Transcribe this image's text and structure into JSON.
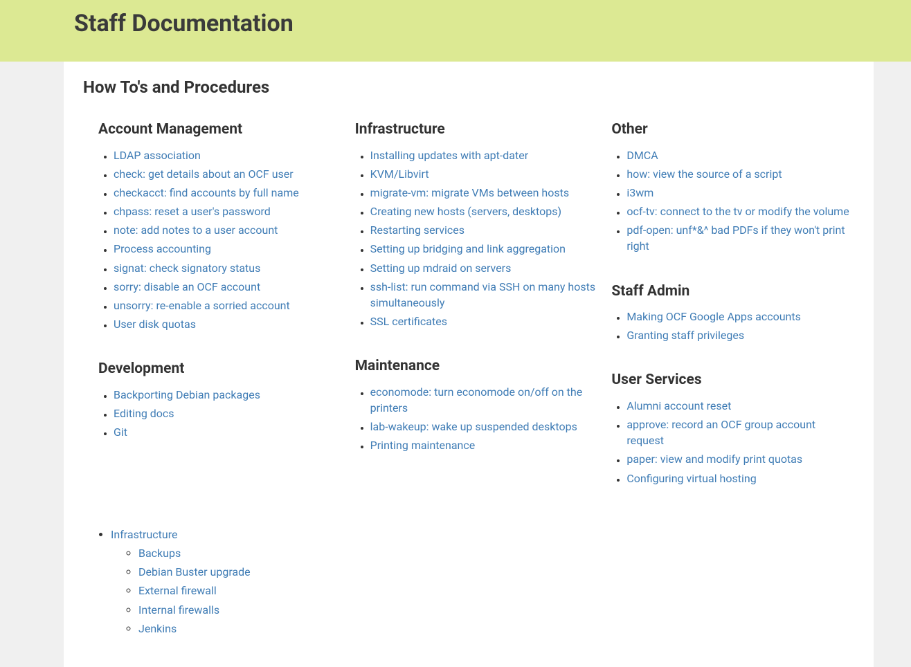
{
  "page_title": "Staff Documentation",
  "section_title": "How To's and Procedures",
  "colors": {
    "header_bg": "#dce993",
    "page_bg": "#f0f0f0",
    "content_bg": "#ffffff",
    "link": "#3f7cb5",
    "text": "#333333"
  },
  "columns": [
    [
      {
        "title": "Account Management",
        "items": [
          "LDAP association",
          "check: get details about an OCF user",
          "checkacct: find accounts by full name",
          "chpass: reset a user's password",
          "note: add notes to a user account",
          "Process accounting",
          "signat: check signatory status",
          "sorry: disable an OCF account",
          "unsorry: re-enable a sorried account",
          "User disk quotas"
        ]
      },
      {
        "title": "Development",
        "items": [
          "Backporting Debian packages",
          "Editing docs",
          "Git"
        ]
      }
    ],
    [
      {
        "title": "Infrastructure",
        "items": [
          "Installing updates with apt-dater",
          "KVM/Libvirt",
          "migrate-vm: migrate VMs between hosts",
          "Creating new hosts (servers, desktops)",
          "Restarting services",
          "Setting up bridging and link aggregation",
          "Setting up mdraid on servers",
          "ssh-list: run command via SSH on many hosts simultaneously",
          "SSL certificates"
        ]
      },
      {
        "title": "Maintenance",
        "items": [
          "economode: turn economode on/off on the printers",
          "lab-wakeup: wake up suspended desktops",
          "Printing maintenance"
        ]
      }
    ],
    [
      {
        "title": "Other",
        "items": [
          "DMCA",
          "how: view the source of a script",
          "i3wm",
          "ocf-tv: connect to the tv or modify the volume",
          "pdf-open: unf*&^ bad PDFs if they won't print right"
        ]
      },
      {
        "title": "Staff Admin",
        "items": [
          "Making OCF Google Apps accounts",
          "Granting staff privileges"
        ]
      },
      {
        "title": "User Services",
        "items": [
          "Alumni account reset",
          "approve: record an OCF group account request",
          "paper: view and modify print quotas",
          "Configuring virtual hosting"
        ]
      }
    ]
  ],
  "footer_list": {
    "label": "Infrastructure",
    "children": [
      "Backups",
      "Debian Buster upgrade",
      "External firewall",
      "Internal firewalls",
      "Jenkins"
    ]
  }
}
